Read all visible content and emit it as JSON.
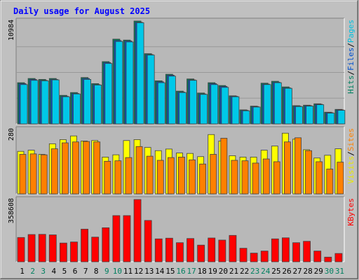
{
  "chart_data": {
    "type": "bar",
    "title": "Daily usage for August 2025",
    "categories": [
      "1",
      "2",
      "3",
      "4",
      "5",
      "6",
      "7",
      "8",
      "9",
      "10",
      "11",
      "12",
      "13",
      "14",
      "15",
      "16",
      "17",
      "18",
      "19",
      "20",
      "21",
      "22",
      "23",
      "24",
      "25",
      "26",
      "27",
      "28",
      "29",
      "30",
      "31"
    ],
    "weekend_days": [
      "2",
      "3",
      "9",
      "10",
      "16",
      "17",
      "23",
      "24",
      "30",
      "31"
    ],
    "panels": [
      {
        "id": "hits_files",
        "ylim": [
          0,
          10984
        ],
        "y_max_label": "10984",
        "axis_labels": [
          {
            "text": "Pages",
            "color": "#00c0e0"
          },
          {
            "text": "Files",
            "color": "#0050d0"
          },
          {
            "text": "Hits",
            "color": "#008060"
          }
        ],
        "series": [
          {
            "name": "Hits",
            "color": "#008060",
            "values": [
              4400,
              4850,
              4750,
              4850,
              3050,
              3350,
              4950,
              4300,
              6650,
              9050,
              8950,
              10984,
              7500,
              4600,
              5300,
              3500,
              4800,
              3300,
              4400,
              4100,
              3000,
              1500,
              1900,
              4350,
              4550,
              3950,
              1950,
              2000,
              2150,
              1250,
              1550
            ]
          },
          {
            "name": "Files",
            "color": "#0050d0",
            "values": [
              4300,
              4750,
              4650,
              4750,
              2950,
              3250,
              4850,
              4200,
              6550,
              8900,
              8850,
              10850,
              7400,
              4500,
              5200,
              3400,
              4700,
              3200,
              4300,
              4000,
              2950,
              1450,
              1850,
              4250,
              4450,
              3850,
              1900,
              1950,
              2100,
              1200,
              1500
            ]
          },
          {
            "name": "Pages",
            "color": "#00c8e8",
            "values": [
              4200,
              4650,
              4600,
              4700,
              2900,
              3200,
              4750,
              4150,
              6450,
              8800,
              8750,
              10800,
              7350,
              4400,
              5100,
              3350,
              4650,
              3150,
              4200,
              3900,
              2900,
              1400,
              1800,
              4200,
              4400,
              3800,
              1850,
              1900,
              2050,
              1150,
              1450
            ]
          }
        ]
      },
      {
        "id": "visits_sites",
        "ylim": [
          0,
          280
        ],
        "y_max_label": "280",
        "axis_labels": [
          {
            "text": "Sites",
            "color": "#ff8000"
          },
          {
            "text": "Visits",
            "color": "#e8e800"
          }
        ],
        "series": [
          {
            "name": "Visits",
            "color": "#ffff00",
            "values": [
              185,
              190,
              172,
              218,
              236,
              252,
              230,
              232,
              160,
              170,
              232,
              236,
              202,
              188,
              195,
              178,
              176,
              162,
              258,
              230,
              166,
              160,
              160,
              190,
              208,
              264,
              238,
              192,
              156,
              168,
              196
            ]
          },
          {
            "name": "Sites",
            "color": "#ff8000",
            "values": [
              172,
              174,
              170,
              196,
              222,
              226,
              228,
              226,
              142,
              144,
              158,
              206,
              164,
              146,
              158,
              160,
              148,
              130,
              172,
              242,
              146,
              144,
              134,
              152,
              140,
              226,
              244,
              188,
              140,
              108,
              138
            ]
          }
        ]
      },
      {
        "id": "kbytes",
        "ylim": [
          0,
          358608
        ],
        "y_max_label": "358608",
        "axis_labels": [
          {
            "text": "KBytes",
            "color": "#ff0000"
          }
        ],
        "series": [
          {
            "name": "KBytes",
            "color": "#ff0000",
            "values": [
              140000,
              157000,
              158000,
              155000,
              108000,
              114000,
              188000,
              142000,
              196000,
              266000,
              266000,
              358608,
              238000,
              132000,
              136000,
              110000,
              134000,
              96000,
              137000,
              125000,
              152000,
              78000,
              50000,
              62000,
              132000,
              138000,
              110000,
              118000,
              62000,
              27000,
              48000
            ]
          }
        ]
      }
    ]
  }
}
